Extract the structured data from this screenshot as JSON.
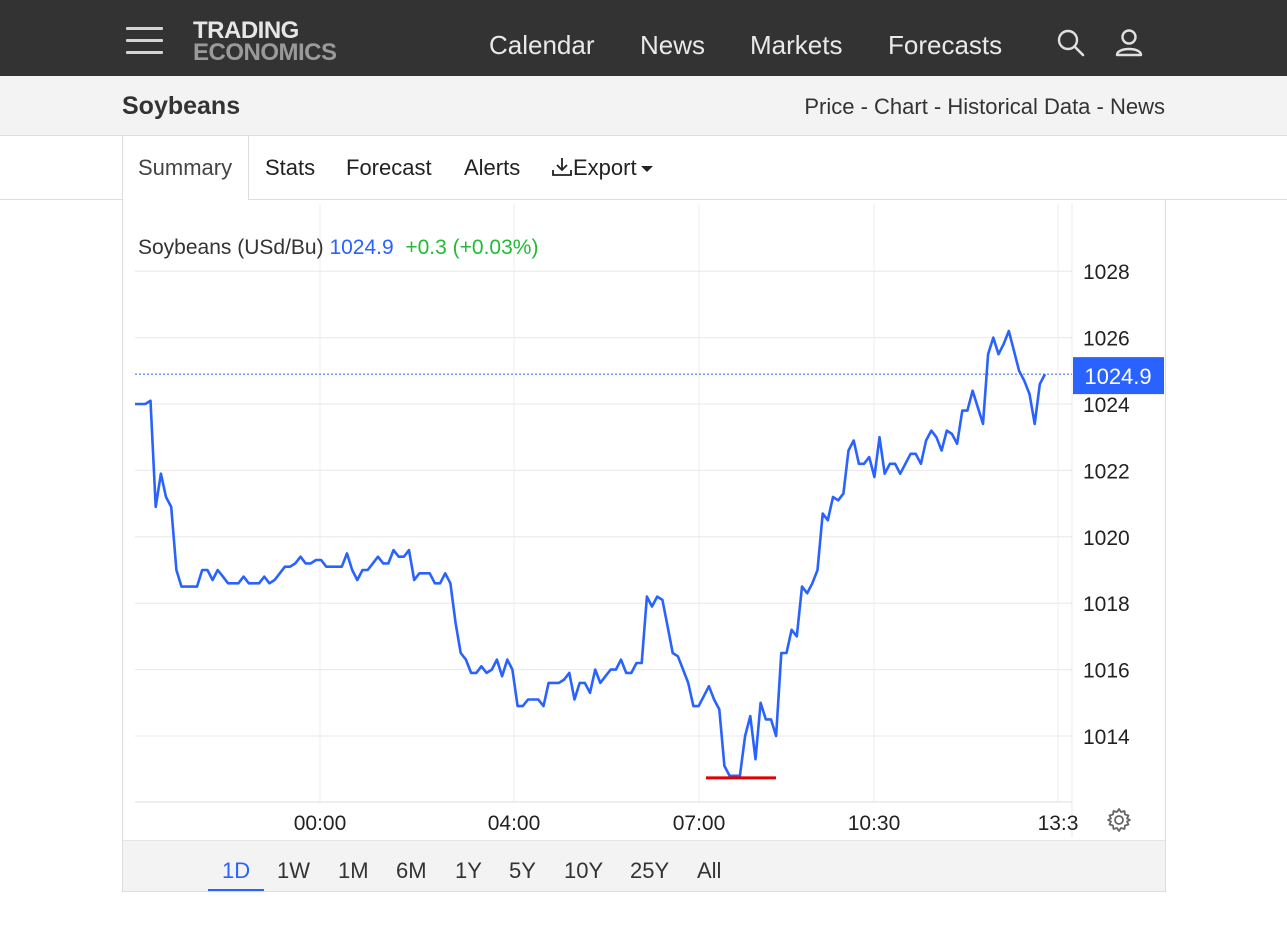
{
  "nav": {
    "logo_line1": "TRADING",
    "logo_line2": "ECONOMICS",
    "links": [
      "Calendar",
      "News",
      "Markets",
      "Forecasts"
    ]
  },
  "header": {
    "title": "Soybeans",
    "breadcrumb": [
      "Price",
      "Chart",
      "Historical Data",
      "News"
    ],
    "breadcrumb_sep": " - "
  },
  "tabs": {
    "summary": "Summary",
    "stats": "Stats",
    "forecast": "Forecast",
    "alerts": "Alerts",
    "export": "Export"
  },
  "legend": {
    "name": "Soybeans (USd/Bu)",
    "value": "1024.9",
    "change": "+0.3 (+0.03%)"
  },
  "ranges": [
    "1D",
    "1W",
    "1M",
    "6M",
    "1Y",
    "5Y",
    "10Y",
    "25Y",
    "All"
  ],
  "active_range": "1D",
  "colors": {
    "line": "#2962ff",
    "change": "#22bb33",
    "low_marker": "#e00000",
    "nav_bg": "#333333"
  },
  "chart_data": {
    "type": "line",
    "x_ticks": [
      "00:00",
      "04:00",
      "07:00",
      "10:30",
      "13:3"
    ],
    "y_ticks": [
      1014,
      1016,
      1018,
      1020,
      1022,
      1024,
      1026,
      1028
    ],
    "ylim": [
      1012,
      1030
    ],
    "last_value_label": "1024.9",
    "last_value": 1024.9,
    "low_value": 1012.8,
    "series": [
      {
        "values": [
          1024.0,
          1024.0,
          1024.0,
          1024.1,
          1020.9,
          1021.9,
          1021.2,
          1020.9,
          1019.0,
          1018.5,
          1018.5,
          1018.5,
          1018.5,
          1019.0,
          1019.0,
          1018.7,
          1019.0,
          1018.8,
          1018.6,
          1018.6,
          1018.6,
          1018.8,
          1018.6,
          1018.6,
          1018.6,
          1018.8,
          1018.6,
          1018.7,
          1018.9,
          1019.1,
          1019.1,
          1019.2,
          1019.4,
          1019.2,
          1019.2,
          1019.3,
          1019.3,
          1019.1,
          1019.1,
          1019.1,
          1019.1,
          1019.5,
          1019.0,
          1018.7,
          1019.0,
          1019.0,
          1019.2,
          1019.4,
          1019.2,
          1019.2,
          1019.6,
          1019.4,
          1019.4,
          1019.6,
          1018.7,
          1018.9,
          1018.9,
          1018.9,
          1018.6,
          1018.6,
          1018.9,
          1018.6,
          1017.4,
          1016.5,
          1016.3,
          1015.9,
          1015.9,
          1016.1,
          1015.9,
          1016.0,
          1016.3,
          1015.8,
          1016.3,
          1016.0,
          1014.9,
          1014.9,
          1015.1,
          1015.1,
          1015.1,
          1014.9,
          1015.6,
          1015.6,
          1015.6,
          1015.7,
          1015.9,
          1015.1,
          1015.6,
          1015.6,
          1015.3,
          1016.0,
          1015.6,
          1015.8,
          1016.0,
          1016.0,
          1016.3,
          1015.9,
          1015.9,
          1016.2,
          1016.2,
          1018.2,
          1017.9,
          1018.2,
          1018.1,
          1017.3,
          1016.5,
          1016.4,
          1016.0,
          1015.6,
          1014.9,
          1014.9,
          1015.2,
          1015.5,
          1015.1,
          1014.8,
          1013.1,
          1012.8,
          1012.8,
          1012.8,
          1014.0,
          1014.6,
          1013.3,
          1015.0,
          1014.5,
          1014.5,
          1014.0,
          1016.5,
          1016.5,
          1017.2,
          1017.0,
          1018.5,
          1018.3,
          1018.6,
          1019.0,
          1020.7,
          1020.5,
          1021.2,
          1021.1,
          1021.3,
          1022.6,
          1022.9,
          1022.2,
          1022.2,
          1022.4,
          1021.8,
          1023.0,
          1021.9,
          1022.2,
          1022.2,
          1021.9,
          1022.2,
          1022.5,
          1022.5,
          1022.2,
          1022.9,
          1023.2,
          1023.0,
          1022.6,
          1023.2,
          1023.1,
          1022.8,
          1023.8,
          1023.8,
          1024.4,
          1023.9,
          1023.4,
          1025.5,
          1026.0,
          1025.5,
          1025.8,
          1026.2,
          1025.6,
          1025.0,
          1024.7,
          1024.3,
          1023.4,
          1024.6,
          1024.9
        ]
      }
    ]
  }
}
